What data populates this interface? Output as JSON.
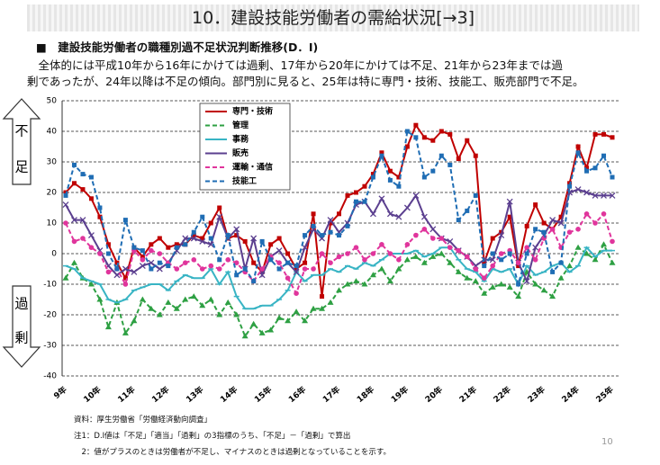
{
  "header": {
    "title": "10．建設技能労働者の需給状況[→3]",
    "subtitle": "■　建設技能労働者の職種別過不足状況判断推移(D．I)"
  },
  "description": [
    "全体的には平成10年から16年にかけては過剰、17年から20年にかけては不足、21年から23年までは過",
    "剰であったが、24年以降は不足の傾向。部門別に見ると、25年は特に専門・技術、技能工、販売部門で不足。"
  ],
  "side_labels": {
    "shortage": [
      "不",
      "足"
    ],
    "surplus": [
      "過",
      "剰"
    ]
  },
  "chart_data": {
    "type": "line",
    "categories": [
      "9年",
      null,
      null,
      null,
      "10年",
      null,
      null,
      null,
      "11年",
      null,
      null,
      null,
      "12年",
      null,
      null,
      null,
      "13年",
      null,
      null,
      null,
      "14年",
      null,
      null,
      null,
      "15年",
      null,
      null,
      null,
      "16年",
      null,
      null,
      null,
      "17年",
      null,
      null,
      null,
      "18年",
      null,
      null,
      null,
      "19年",
      null,
      null,
      null,
      "20年",
      null,
      null,
      null,
      "21年",
      null,
      null,
      null,
      "22年",
      null,
      null,
      null,
      "23年",
      null,
      null,
      null,
      "24年",
      null,
      null,
      null,
      "25年"
    ],
    "ylim": [
      -40,
      50
    ],
    "yticks": [
      50,
      40,
      30,
      20,
      10,
      0,
      -10,
      -20,
      -30,
      -40
    ],
    "grid": true,
    "series": [
      {
        "name": "専門・技術",
        "color": "#c00000",
        "marker": "square",
        "dash": false,
        "values": [
          20,
          23,
          21,
          18,
          12,
          3,
          -3,
          -8,
          2,
          -1,
          3,
          5,
          2,
          3,
          3,
          6,
          5,
          10,
          15,
          5,
          6,
          4,
          -3,
          -6,
          3,
          5,
          0,
          -5,
          -3,
          13,
          -14,
          10,
          13,
          19,
          20,
          22,
          26,
          33,
          27,
          25,
          35,
          42,
          38,
          37,
          40,
          39,
          31,
          37,
          32,
          -3,
          5,
          7,
          12,
          -4,
          9,
          16,
          10,
          8,
          12,
          23,
          35,
          28,
          39,
          39,
          38
        ]
      },
      {
        "name": "管理",
        "color": "#2ea043",
        "marker": "triangle",
        "dash": true,
        "values": [
          -8,
          -3,
          -8,
          -10,
          -15,
          -24,
          -16,
          -26,
          -22,
          -15,
          -18,
          -20,
          -16,
          -18,
          -15,
          -14,
          -17,
          -15,
          -20,
          -16,
          -20,
          -27,
          -23,
          -26,
          -25,
          -21,
          -22,
          -19,
          -22,
          -18,
          -18,
          -16,
          -12,
          -10,
          -9,
          -10,
          -7,
          -5,
          -9,
          -5,
          -2,
          -1,
          -3,
          -1,
          0,
          -3,
          -6,
          -8,
          -9,
          -13,
          -11,
          -10,
          -11,
          -14,
          -6,
          -10,
          -12,
          -14,
          -8,
          -4,
          2,
          0,
          -2,
          3,
          -3
        ]
      },
      {
        "name": "事務",
        "color": "#38b4c4",
        "marker": "dash",
        "dash": false,
        "values": [
          -4,
          -5,
          -8,
          -9,
          -10,
          -15,
          -16,
          -15,
          -12,
          -11,
          -10,
          -10,
          -12,
          -9,
          -7,
          -8,
          -8,
          -5,
          -10,
          -6,
          -14,
          -18,
          -18,
          -17,
          -17,
          -15,
          -12,
          -6,
          -9,
          -7,
          -7,
          -5,
          -6,
          -4,
          -5,
          -3,
          -4,
          -2,
          0,
          0,
          0,
          1,
          -1,
          0,
          2,
          2,
          -2,
          -5,
          -6,
          -9,
          -5,
          -6,
          -5,
          -10,
          -4,
          -7,
          -6,
          -4,
          -3,
          -6,
          -4,
          2,
          -1,
          1,
          1
        ]
      },
      {
        "name": "販売",
        "color": "#5b3f8f",
        "marker": "cross",
        "dash": false,
        "values": [
          16,
          11,
          11,
          6,
          1,
          -4,
          -7,
          -5,
          -6,
          -4,
          -3,
          -5,
          -3,
          1,
          5,
          5,
          4,
          3,
          12,
          5,
          8,
          -5,
          5,
          -7,
          -1,
          1,
          -3,
          -6,
          2,
          8,
          5,
          11,
          7,
          10,
          16,
          17,
          13,
          18,
          13,
          12,
          15,
          19,
          12,
          8,
          5,
          4,
          1,
          -1,
          -4,
          -2,
          -2,
          6,
          17,
          -3,
          -9,
          2,
          6,
          11,
          10,
          20,
          21,
          20,
          19,
          19,
          19
        ]
      },
      {
        "name": "運輸・通信",
        "color": "#e0359c",
        "marker": "circle",
        "dash": true,
        "values": [
          10,
          4,
          5,
          2,
          0,
          -6,
          -5,
          -10,
          1,
          -2,
          1,
          0,
          -3,
          -5,
          -3,
          -2,
          -5,
          -4,
          -5,
          -2,
          -3,
          -6,
          -9,
          -5,
          -1,
          -3,
          -8,
          -13,
          -5,
          -5,
          0,
          -3,
          -1,
          0,
          2,
          -2,
          0,
          3,
          0,
          -2,
          3,
          6,
          8,
          5,
          5,
          2,
          1,
          -1,
          -5,
          -8,
          -4,
          0,
          1,
          -3,
          2,
          -2,
          5,
          8,
          2,
          7,
          8,
          13,
          10,
          13,
          4
        ]
      },
      {
        "name": "技能工",
        "color": "#1f6db4",
        "marker": "square",
        "dash": true,
        "values": [
          19,
          29,
          26,
          25,
          15,
          0,
          -5,
          11,
          2,
          1,
          -5,
          -3,
          -4,
          2,
          3,
          7,
          12,
          5,
          -2,
          6,
          -7,
          -5,
          -9,
          4,
          -2,
          -5,
          -3,
          -4,
          6,
          9,
          6,
          7,
          6,
          9,
          17,
          17,
          25,
          32,
          24,
          22,
          40,
          38,
          25,
          27,
          32,
          29,
          11,
          14,
          19,
          -4,
          0,
          -2,
          0,
          -10,
          0,
          8,
          7,
          -6,
          -3,
          22,
          33,
          27,
          28,
          32,
          25
        ]
      }
    ]
  },
  "notes": [
    "資料：厚生労働省「労働経済動向調査」",
    "注1：D.I値は「不足」「適当」「過剰」の3指標のうち、「不足」－「過剰」で算出",
    "　2：値がプラスのときは労働者が不足し、マイナスのときは過剰となっていることを示す。"
  ],
  "page_number": "10"
}
